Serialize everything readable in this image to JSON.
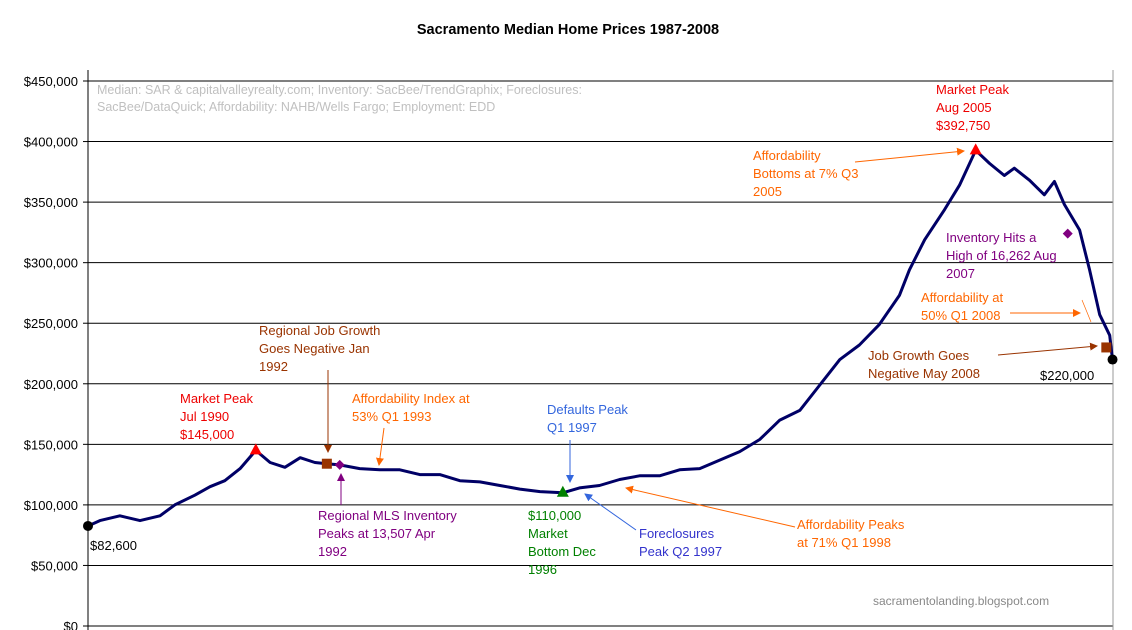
{
  "chart_data": {
    "type": "line",
    "title": "Sacramento Median Home Prices 1987-2008",
    "source_note": [
      "Median: SAR & capitalvalleyrealty.com; Inventory: SacBee/TrendGraphix; Foreclosures:",
      "SacBee/DataQuick; Affordability: NAHB/Wells Fargo; Employment: EDD"
    ],
    "watermark": "sacramentolanding.blogspot.com",
    "xlabel": "",
    "ylabel": "",
    "xlim": [
      1987.0,
      2008.5
    ],
    "ylim": [
      0,
      450000
    ],
    "yticks": [
      "$0",
      "$50,000",
      "$100,000",
      "$150,000",
      "$200,000",
      "$250,000",
      "$300,000",
      "$350,000",
      "$400,000",
      "$450,000"
    ],
    "grid": true,
    "line_color": "#000066",
    "series": [
      {
        "x": [
          1987.0,
          1987.25,
          1987.67,
          1988.09,
          1988.51,
          1988.82,
          1989.24,
          1989.56,
          1989.87,
          1990.19,
          1990.52,
          1990.82,
          1991.13,
          1991.45,
          1991.76,
          1992.01,
          1992.28,
          1992.7,
          1993.12,
          1993.54,
          1993.96,
          1994.38,
          1994.8,
          1995.22,
          1995.64,
          1996.06,
          1996.48,
          1996.96,
          1997.31,
          1997.73,
          1998.15,
          1998.57,
          1998.99,
          1999.41,
          1999.83,
          2000.25,
          2000.67,
          2001.09,
          2001.51,
          2001.93,
          2002.35,
          2002.77,
          2003.18,
          2003.6,
          2004.02,
          2004.23,
          2004.55,
          2004.97,
          2005.28,
          2005.62,
          2005.91,
          2006.22,
          2006.43,
          2006.75,
          2007.06,
          2007.27,
          2007.48,
          2007.8,
          2008.01,
          2008.22,
          2008.43,
          2008.49
        ],
        "y": [
          82600,
          87000,
          91000,
          87000,
          91000,
          100000,
          108000,
          115000,
          120000,
          130000,
          145000,
          135000,
          131000,
          139000,
          135000,
          134000,
          133000,
          130000,
          129000,
          129000,
          125000,
          125000,
          120000,
          119000,
          116000,
          113000,
          111000,
          110000,
          114000,
          116000,
          121000,
          124000,
          124000,
          129000,
          130000,
          137000,
          144000,
          154000,
          170000,
          178000,
          199000,
          220000,
          232000,
          249000,
          273000,
          294000,
          319000,
          344000,
          364000,
          392750,
          382000,
          372000,
          378000,
          368000,
          356000,
          367000,
          348000,
          327000,
          294000,
          257000,
          240000,
          220000
        ]
      }
    ],
    "markers": [
      {
        "x": 1987.0,
        "y": 82600,
        "shape": "circle",
        "color": "#000000"
      },
      {
        "x": 1990.52,
        "y": 145000,
        "shape": "triangle",
        "color": "#ff0000"
      },
      {
        "x": 1992.01,
        "y": 134000,
        "shape": "square",
        "color": "#993300"
      },
      {
        "x": 1992.28,
        "y": 133000,
        "shape": "diamond",
        "color": "#800080"
      },
      {
        "x": 1996.96,
        "y": 110000,
        "shape": "triangle",
        "color": "#008000"
      },
      {
        "x": 2005.62,
        "y": 392750,
        "shape": "triangle",
        "color": "#ff0000"
      },
      {
        "x": 2007.55,
        "y": 324000,
        "shape": "diamond",
        "color": "#800080"
      },
      {
        "x": 2008.36,
        "y": 230000,
        "shape": "square",
        "color": "#993300"
      },
      {
        "x": 2008.49,
        "y": 220000,
        "shape": "circle",
        "color": "#000000"
      }
    ],
    "annotations": {
      "peak_1990": {
        "lines": [
          "Market Peak",
          "Jul 1990",
          "$145,000"
        ],
        "color": "#ee0000"
      },
      "job_1992": {
        "lines": [
          "Regional Job Growth",
          "Goes Negative Jan",
          "1992"
        ],
        "color": "#993300"
      },
      "afford_1993": {
        "lines": [
          "Affordability Index at",
          "53% Q1 1993"
        ],
        "color": "#ff6600"
      },
      "defaults_1997": {
        "lines": [
          "Defaults Peak",
          "Q1 1997"
        ],
        "color": "#3366dd"
      },
      "inventory_1992": {
        "lines": [
          "Regional MLS Inventory",
          "Peaks at 13,507 Apr",
          "1992"
        ],
        "color": "#800080"
      },
      "bottom_1996": {
        "lines": [
          "$110,000",
          "Market",
          "Bottom Dec",
          "1996"
        ],
        "color": "#008000"
      },
      "foreclosures_1997": {
        "lines": [
          "Foreclosures",
          "Peak Q2 1997"
        ],
        "color": "#3333cc"
      },
      "afford_1998": {
        "lines": [
          "Affordability Peaks",
          "at 71% Q1 1998"
        ],
        "color": "#ff6600"
      },
      "start_value": {
        "lines": [
          "$82,600"
        ],
        "color": "#000000"
      },
      "peak_2005": {
        "lines": [
          "Market Peak",
          "Aug 2005",
          "$392,750"
        ],
        "color": "#ee0000"
      },
      "afford_2005": {
        "lines": [
          "Affordability",
          "Bottoms at 7% Q3",
          "2005"
        ],
        "color": "#ff6600"
      },
      "inventory_2007": {
        "lines": [
          "Inventory Hits a",
          "High of 16,262 Aug",
          "2007"
        ],
        "color": "#800080"
      },
      "afford_2008": {
        "lines": [
          "Affordability at",
          "50% Q1 2008"
        ],
        "color": "#ff6600"
      },
      "job_2008": {
        "lines": [
          "Job Growth Goes",
          "Negative May 2008"
        ],
        "color": "#993300"
      },
      "end_value": {
        "lines": [
          "$220,000"
        ],
        "color": "#000000"
      }
    }
  }
}
